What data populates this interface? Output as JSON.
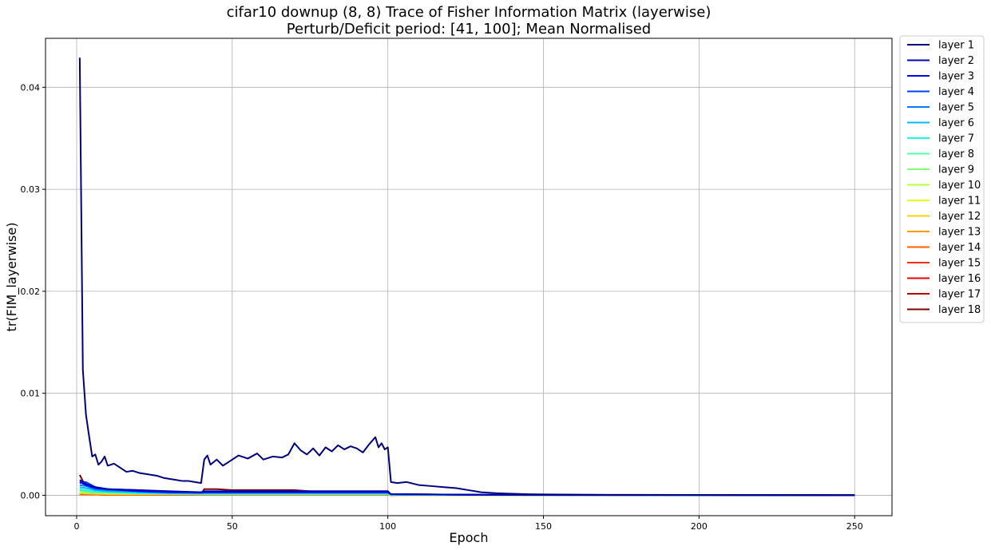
{
  "chart_data": {
    "type": "line",
    "title": "cifar10 downup (8, 8) Trace of Fisher Information Matrix (layerwise)",
    "subtitle": "Perturb/Deficit period: [41, 100]; Mean Normalised",
    "xlabel": "Epoch",
    "ylabel": "tr(FIM_layerwise)",
    "xlim": [
      -10,
      262
    ],
    "ylim": [
      -0.002,
      0.0448
    ],
    "xticks": [
      0,
      50,
      100,
      150,
      200,
      250
    ],
    "yticks": [
      0.0,
      0.01,
      0.02,
      0.03,
      0.04
    ],
    "xtick_labels": [
      "0",
      "50",
      "100",
      "150",
      "200",
      "250"
    ],
    "ytick_labels": [
      "0.00",
      "0.01",
      "0.02",
      "0.03",
      "0.04"
    ],
    "grid": true,
    "legend_position": "outside-right",
    "series": [
      {
        "name": "layer 1",
        "color": "#00007f",
        "points": [
          [
            1,
            0.0429
          ],
          [
            2,
            0.0123
          ],
          [
            3,
            0.0079
          ],
          [
            4,
            0.0058
          ],
          [
            5,
            0.0038
          ],
          [
            6,
            0.004
          ],
          [
            7,
            0.003
          ],
          [
            8,
            0.0033
          ],
          [
            9,
            0.0038
          ],
          [
            10,
            0.0029
          ],
          [
            12,
            0.0031
          ],
          [
            14,
            0.0027
          ],
          [
            16,
            0.0023
          ],
          [
            18,
            0.0024
          ],
          [
            20,
            0.0022
          ],
          [
            22,
            0.0021
          ],
          [
            24,
            0.002
          ],
          [
            26,
            0.0019
          ],
          [
            28,
            0.0017
          ],
          [
            30,
            0.0016
          ],
          [
            32,
            0.0015
          ],
          [
            34,
            0.0014
          ],
          [
            36,
            0.0014
          ],
          [
            38,
            0.0013
          ],
          [
            40,
            0.0012
          ],
          [
            41,
            0.0035
          ],
          [
            42,
            0.0039
          ],
          [
            43,
            0.003
          ],
          [
            45,
            0.0035
          ],
          [
            47,
            0.0029
          ],
          [
            49,
            0.0033
          ],
          [
            52,
            0.0039
          ],
          [
            55,
            0.0036
          ],
          [
            58,
            0.0041
          ],
          [
            60,
            0.0035
          ],
          [
            63,
            0.0038
          ],
          [
            66,
            0.0037
          ],
          [
            68,
            0.004
          ],
          [
            70,
            0.0051
          ],
          [
            72,
            0.0044
          ],
          [
            74,
            0.004
          ],
          [
            76,
            0.0046
          ],
          [
            78,
            0.0039
          ],
          [
            80,
            0.0047
          ],
          [
            82,
            0.0043
          ],
          [
            84,
            0.0049
          ],
          [
            86,
            0.0045
          ],
          [
            88,
            0.0048
          ],
          [
            90,
            0.0046
          ],
          [
            92,
            0.0042
          ],
          [
            94,
            0.005
          ],
          [
            96,
            0.0057
          ],
          [
            97,
            0.0047
          ],
          [
            98,
            0.0051
          ],
          [
            99,
            0.0045
          ],
          [
            100,
            0.0047
          ],
          [
            101,
            0.0013
          ],
          [
            103,
            0.0012
          ],
          [
            106,
            0.0013
          ],
          [
            110,
            0.001
          ],
          [
            114,
            0.0009
          ],
          [
            118,
            0.0008
          ],
          [
            122,
            0.0007
          ],
          [
            126,
            0.0005
          ],
          [
            130,
            0.0003
          ],
          [
            135,
            0.0002
          ],
          [
            140,
            0.00015
          ],
          [
            145,
            0.0001
          ],
          [
            150,
            8e-05
          ],
          [
            160,
            6e-05
          ],
          [
            175,
            4e-05
          ],
          [
            200,
            3e-05
          ],
          [
            225,
            2e-05
          ],
          [
            250,
            2e-05
          ]
        ]
      },
      {
        "name": "layer 2",
        "color": "#0000b6",
        "points": [
          [
            1,
            0.0015
          ],
          [
            3,
            0.0011
          ],
          [
            6,
            0.0008
          ],
          [
            10,
            0.0006
          ],
          [
            20,
            0.0005
          ],
          [
            30,
            0.0004
          ],
          [
            40,
            0.0003
          ],
          [
            41,
            0.0004
          ],
          [
            70,
            0.0004
          ],
          [
            100,
            0.0004
          ],
          [
            101,
            0.0001
          ],
          [
            130,
            5e-05
          ],
          [
            250,
            1e-05
          ]
        ]
      },
      {
        "name": "layer 3",
        "color": "#0000f1",
        "points": [
          [
            1,
            0.0013
          ],
          [
            3,
            0.001
          ],
          [
            6,
            0.0007
          ],
          [
            10,
            0.0006
          ],
          [
            20,
            0.0004
          ],
          [
            30,
            0.0003
          ],
          [
            40,
            0.0003
          ],
          [
            41,
            0.0003
          ],
          [
            70,
            0.0003
          ],
          [
            100,
            0.0003
          ],
          [
            101,
            0.0001
          ],
          [
            130,
            4e-05
          ],
          [
            250,
            1e-05
          ]
        ]
      },
      {
        "name": "layer 4",
        "color": "#0040ff",
        "points": [
          [
            1,
            0.0012
          ],
          [
            3,
            0.0013
          ],
          [
            6,
            0.0008
          ],
          [
            10,
            0.0006
          ],
          [
            20,
            0.0005
          ],
          [
            30,
            0.0003
          ],
          [
            40,
            0.0003
          ],
          [
            41,
            0.0003
          ],
          [
            70,
            0.0003
          ],
          [
            100,
            0.0003
          ],
          [
            101,
            0.0001
          ],
          [
            130,
            4e-05
          ],
          [
            250,
            1e-05
          ]
        ]
      },
      {
        "name": "layer 5",
        "color": "#007cff",
        "points": [
          [
            1,
            0.001
          ],
          [
            3,
            0.0009
          ],
          [
            6,
            0.0006
          ],
          [
            10,
            0.0005
          ],
          [
            20,
            0.0004
          ],
          [
            30,
            0.0003
          ],
          [
            40,
            0.0002
          ],
          [
            41,
            0.0003
          ],
          [
            70,
            0.0003
          ],
          [
            100,
            0.0003
          ],
          [
            101,
            0.0001
          ],
          [
            130,
            4e-05
          ],
          [
            250,
            1e-05
          ]
        ]
      },
      {
        "name": "layer 6",
        "color": "#00b8ff",
        "points": [
          [
            1,
            0.0008
          ],
          [
            3,
            0.0007
          ],
          [
            6,
            0.0005
          ],
          [
            10,
            0.0004
          ],
          [
            20,
            0.0003
          ],
          [
            30,
            0.0002
          ],
          [
            40,
            0.0002
          ],
          [
            41,
            0.0002
          ],
          [
            100,
            0.0002
          ],
          [
            101,
            0.0001
          ],
          [
            130,
            3e-05
          ],
          [
            250,
            1e-05
          ]
        ]
      },
      {
        "name": "layer 7",
        "color": "#1cf4db",
        "points": [
          [
            1,
            0.0006
          ],
          [
            5,
            0.0004
          ],
          [
            20,
            0.0002
          ],
          [
            40,
            0.0002
          ],
          [
            100,
            0.0002
          ],
          [
            101,
            5e-05
          ],
          [
            250,
            1e-05
          ]
        ]
      },
      {
        "name": "layer 8",
        "color": "#51ffa6",
        "points": [
          [
            1,
            0.0005
          ],
          [
            5,
            0.0003
          ],
          [
            20,
            0.0002
          ],
          [
            40,
            0.0001
          ],
          [
            100,
            0.0001
          ],
          [
            101,
            4e-05
          ],
          [
            250,
            1e-05
          ]
        ]
      },
      {
        "name": "layer 9",
        "color": "#83ff73",
        "points": [
          [
            1,
            0.0004
          ],
          [
            5,
            0.0003
          ],
          [
            20,
            0.0002
          ],
          [
            40,
            0.0001
          ],
          [
            100,
            0.0001
          ],
          [
            101,
            3e-05
          ],
          [
            250,
            1e-05
          ]
        ]
      },
      {
        "name": "layer 10",
        "color": "#b6ff41",
        "points": [
          [
            1,
            0.0003
          ],
          [
            10,
            0.0002
          ],
          [
            40,
            0.0001
          ],
          [
            100,
            0.0001
          ],
          [
            101,
            3e-05
          ],
          [
            250,
            1e-05
          ]
        ]
      },
      {
        "name": "layer 11",
        "color": "#e7ff0f",
        "points": [
          [
            1,
            0.0003
          ],
          [
            10,
            0.0002
          ],
          [
            40,
            0.0001
          ],
          [
            100,
            0.0001
          ],
          [
            101,
            3e-05
          ],
          [
            250,
            1e-05
          ]
        ]
      },
      {
        "name": "layer 12",
        "color": "#ffd200",
        "points": [
          [
            1,
            0.0002
          ],
          [
            10,
            0.0001
          ],
          [
            100,
            0.0001
          ],
          [
            101,
            2e-05
          ],
          [
            250,
            1e-05
          ]
        ]
      },
      {
        "name": "layer 13",
        "color": "#ff9a00",
        "points": [
          [
            1,
            0.0002
          ],
          [
            10,
            0.0001
          ],
          [
            100,
            0.0001
          ],
          [
            101,
            2e-05
          ],
          [
            250,
            1e-05
          ]
        ]
      },
      {
        "name": "layer 14",
        "color": "#ff6300",
        "points": [
          [
            1,
            0.0001
          ],
          [
            10,
            8e-05
          ],
          [
            100,
            8e-05
          ],
          [
            101,
            2e-05
          ],
          [
            250,
            1e-05
          ]
        ]
      },
      {
        "name": "layer 15",
        "color": "#ff2b00",
        "points": [
          [
            1,
            0.0001
          ],
          [
            10,
            6e-05
          ],
          [
            100,
            6e-05
          ],
          [
            101,
            2e-05
          ],
          [
            250,
            1e-05
          ]
        ]
      },
      {
        "name": "layer 16",
        "color": "#ed0000",
        "points": [
          [
            1,
            0.0001
          ],
          [
            10,
            5e-05
          ],
          [
            100,
            5e-05
          ],
          [
            101,
            1e-05
          ],
          [
            250,
            1e-05
          ]
        ]
      },
      {
        "name": "layer 17",
        "color": "#b20000",
        "points": [
          [
            1,
            0.0001
          ],
          [
            10,
            5e-05
          ],
          [
            100,
            5e-05
          ],
          [
            101,
            1e-05
          ],
          [
            250,
            1e-05
          ]
        ]
      },
      {
        "name": "layer 18",
        "color": "#7f0000",
        "points": [
          [
            1,
            0.002
          ],
          [
            2,
            0.0014
          ],
          [
            3,
            0.0011
          ],
          [
            5,
            0.0008
          ],
          [
            8,
            0.0007
          ],
          [
            12,
            0.0005
          ],
          [
            16,
            0.0004
          ],
          [
            20,
            0.0003
          ],
          [
            25,
            0.0003
          ],
          [
            30,
            0.0002
          ],
          [
            35,
            0.0002
          ],
          [
            40,
            0.0001
          ],
          [
            41,
            0.0006
          ],
          [
            45,
            0.0006
          ],
          [
            50,
            0.0005
          ],
          [
            55,
            0.0005
          ],
          [
            60,
            0.0005
          ],
          [
            65,
            0.0005
          ],
          [
            70,
            0.0005
          ],
          [
            75,
            0.0004
          ],
          [
            80,
            0.0004
          ],
          [
            85,
            0.0004
          ],
          [
            90,
            0.0004
          ],
          [
            95,
            0.0004
          ],
          [
            100,
            0.0004
          ],
          [
            101,
            0.0001
          ],
          [
            110,
            0.0001
          ],
          [
            120,
            6e-05
          ],
          [
            130,
            4e-05
          ],
          [
            150,
            3e-05
          ],
          [
            200,
            2e-05
          ],
          [
            250,
            2e-05
          ]
        ]
      }
    ]
  }
}
